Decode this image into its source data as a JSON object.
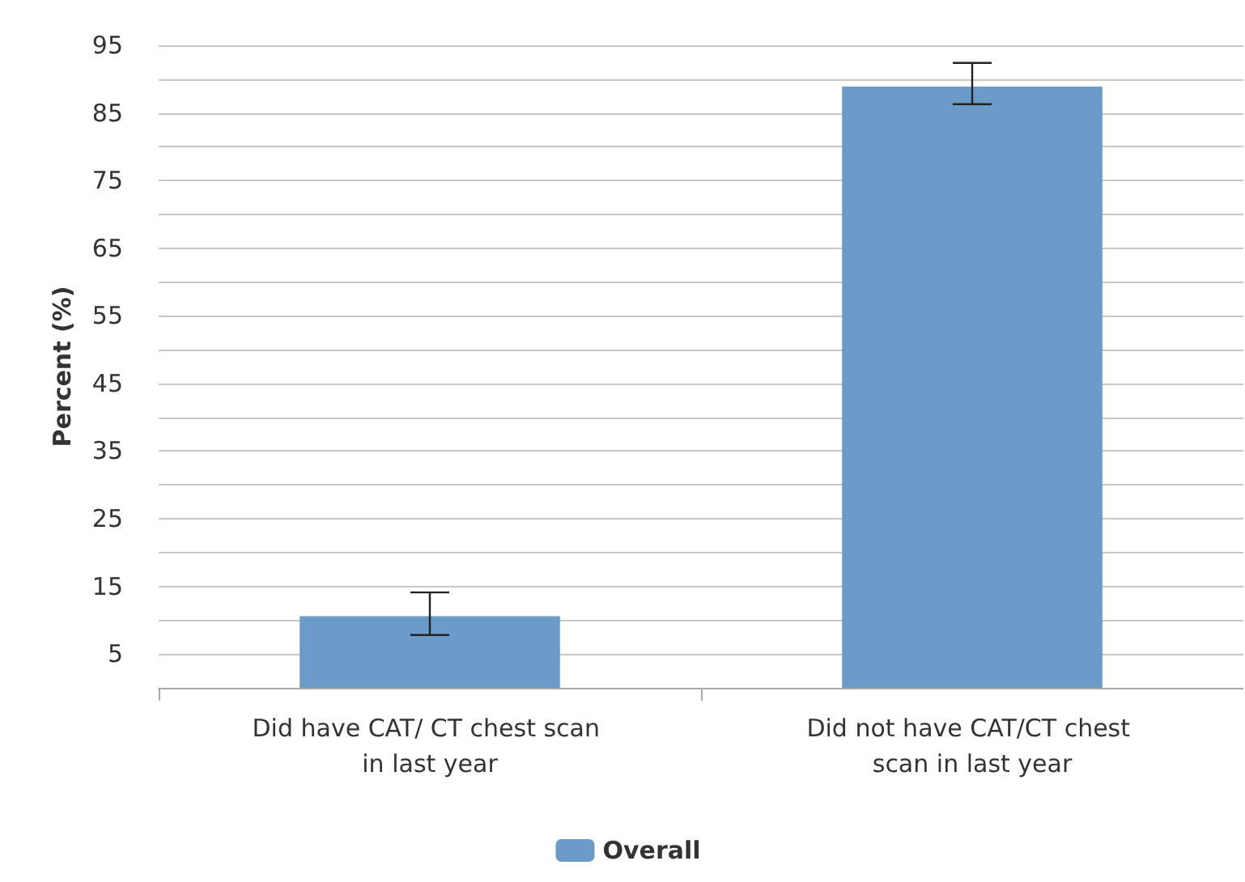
{
  "chart_data": {
    "type": "bar",
    "ylabel": "Percent (%)",
    "categories": [
      "Did have CAT/ CT chest scan in last year",
      "Did not have CAT/CT chest scan in last year"
    ],
    "series": [
      {
        "name": "Overall",
        "color": "#6a9bc9",
        "values": [
          10.6,
          88.9
        ],
        "errors": [
          [
            7.8,
            14.1
          ],
          [
            86.3,
            92.4
          ]
        ]
      }
    ],
    "ylim": [
      0,
      95
    ],
    "yticks": [
      5,
      {
        "value": 10,
        "label": null
      },
      15,
      {
        "value": 20,
        "label": null
      },
      25,
      {
        "value": 30,
        "label": null
      },
      35,
      {
        "value": 40,
        "label": null
      },
      45,
      {
        "value": 50,
        "label": null
      },
      55,
      {
        "value": 60,
        "label": null
      },
      65,
      {
        "value": 70,
        "label": null
      },
      75,
      {
        "value": 80,
        "label": null
      },
      85,
      {
        "value": 90,
        "label": null
      },
      95
    ],
    "grid": "y",
    "legend": "bottom"
  }
}
